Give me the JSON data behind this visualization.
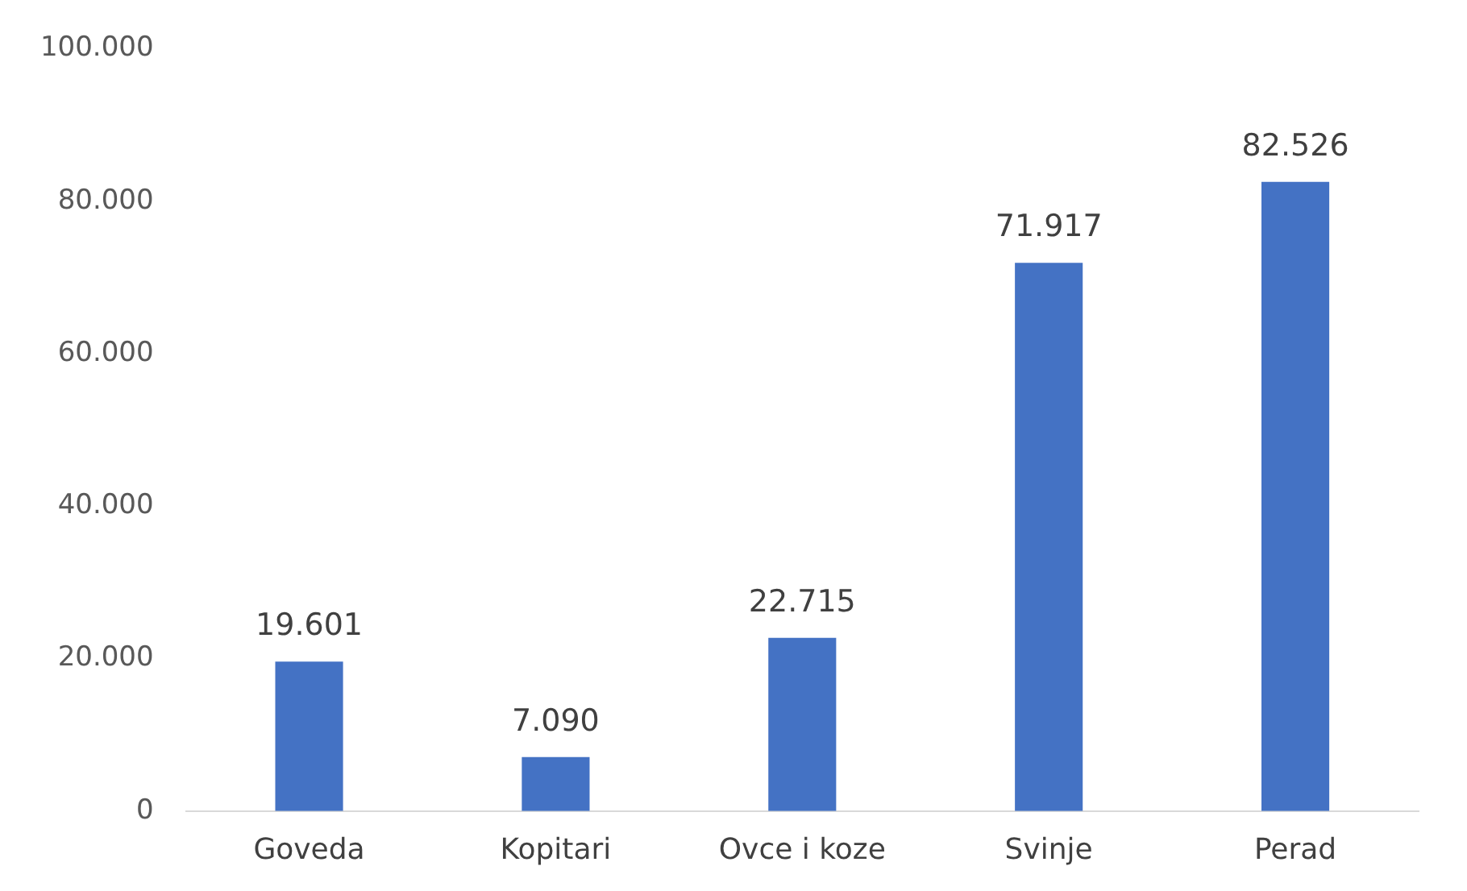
{
  "chart_data": {
    "type": "bar",
    "categories": [
      "Goveda",
      "Kopitari",
      "Ovce i koze",
      "Svinje",
      "Perad"
    ],
    "values": [
      19601,
      7090,
      22715,
      71917,
      82526
    ],
    "value_labels": [
      "19.601",
      "7.090",
      "22.715",
      "71.917",
      "82.526"
    ],
    "color": "#4472c4",
    "ylim": [
      0,
      100000
    ],
    "yticks": [
      {
        "value": 0,
        "label": "0"
      },
      {
        "value": 20000,
        "label": "20.000"
      },
      {
        "value": 40000,
        "label": "40.000"
      },
      {
        "value": 60000,
        "label": "60.000"
      },
      {
        "value": 80000,
        "label": "80.000"
      },
      {
        "value": 100000,
        "label": "100.000"
      }
    ],
    "grid": false,
    "legend": false
  }
}
